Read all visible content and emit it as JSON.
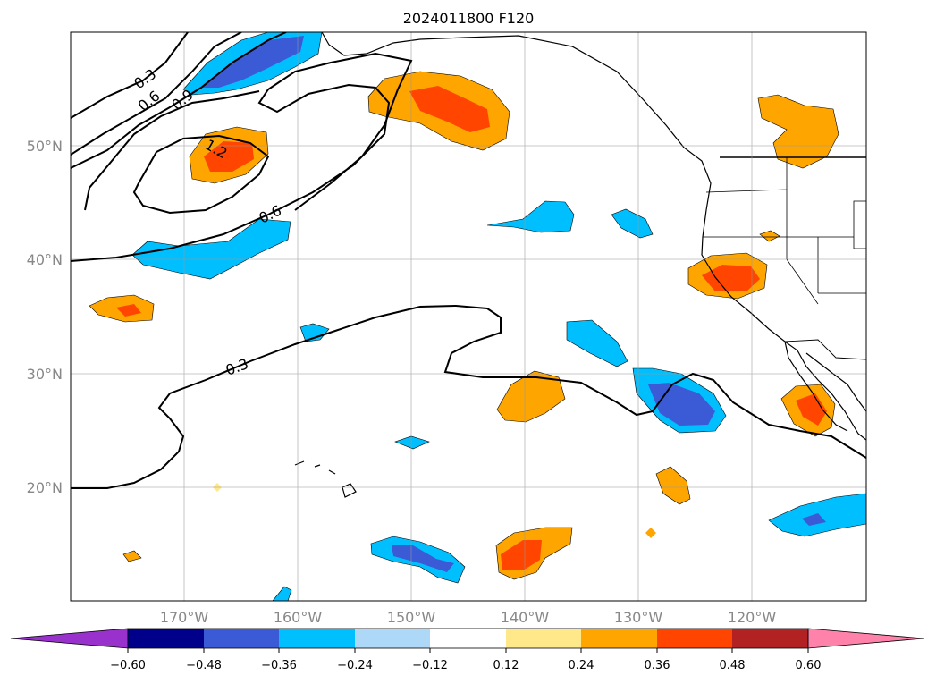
{
  "title": "2024011800 F120",
  "map": {
    "lon_range": [
      -180,
      -110
    ],
    "lat_range": [
      10,
      60
    ],
    "gridlines": true,
    "lon_labels": [
      "170°W",
      "160°W",
      "150°W",
      "140°W",
      "130°W",
      "120°W"
    ],
    "lat_labels": [
      "20°N",
      "30°N",
      "40°N",
      "50°N"
    ],
    "contour_labels": [
      "0.3",
      "0.6",
      "0.9",
      "1.2",
      "0.6",
      "0.3"
    ]
  },
  "colorbar": {
    "tick_labels": [
      "−0.60",
      "−0.48",
      "−0.36",
      "−0.24",
      "−0.12",
      "0.12",
      "0.24",
      "0.36",
      "0.48",
      "0.60"
    ],
    "colors": [
      "#9932cc",
      "#00008b",
      "#3b5bd6",
      "#00bfff",
      "#add8f7",
      "#ffffff",
      "#ffe88a",
      "#ffa500",
      "#ff4500",
      "#b22222",
      "#ff82ab"
    ],
    "extend": "both"
  }
}
